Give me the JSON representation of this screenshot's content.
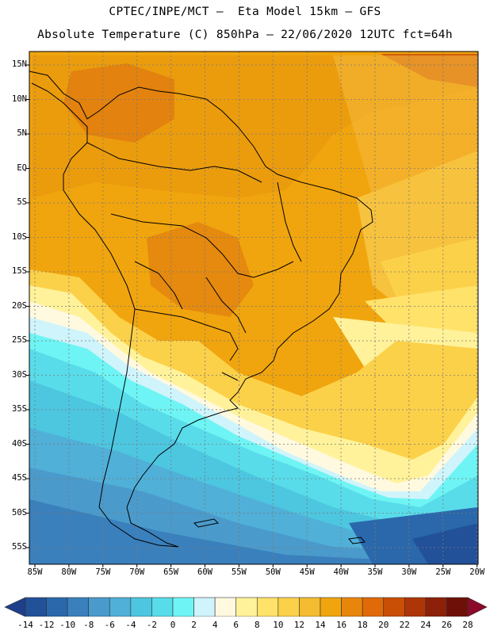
{
  "title": {
    "line1": "CPTEC/INPE/MCT –  Eta Model 15km – GFS",
    "line2": "Absolute Temperature (C) 850hPa – 22/06/2020 12UTC fct=64h"
  },
  "map": {
    "variable": "Absolute Temperature",
    "units": "C",
    "level": "850hPa",
    "lat_labels": [
      "15N",
      "10N",
      "5N",
      "EQ",
      "5S",
      "10S",
      "15S",
      "20S",
      "25S",
      "30S",
      "35S",
      "40S",
      "45S",
      "50S",
      "55S"
    ],
    "lon_labels": [
      "85W",
      "80W",
      "75W",
      "70W",
      "65W",
      "60W",
      "55W",
      "50W",
      "45W",
      "40W",
      "35W",
      "30W",
      "25W",
      "20W"
    ]
  },
  "colorbar": {
    "labels": [
      "-14",
      "-12",
      "-10",
      "-8",
      "-6",
      "-4",
      "-2",
      "0",
      "2",
      "4",
      "6",
      "8",
      "10",
      "12",
      "14",
      "16",
      "18",
      "20",
      "22",
      "24",
      "26",
      "28"
    ],
    "colors": [
      "#1e3f8a",
      "#22519a",
      "#2a68ab",
      "#3a80bd",
      "#4a9bcc",
      "#50b0d8",
      "#4dc6e0",
      "#58dcea",
      "#6ef4f4",
      "#cff4fb",
      "#fff9e0",
      "#fff29a",
      "#ffe26a",
      "#fcd14a",
      "#f4bc30",
      "#f0a50e",
      "#e8860c",
      "#e06a08",
      "#c94e06",
      "#ae3508",
      "#8c2008",
      "#6e1008",
      "#8b0a2a"
    ]
  }
}
